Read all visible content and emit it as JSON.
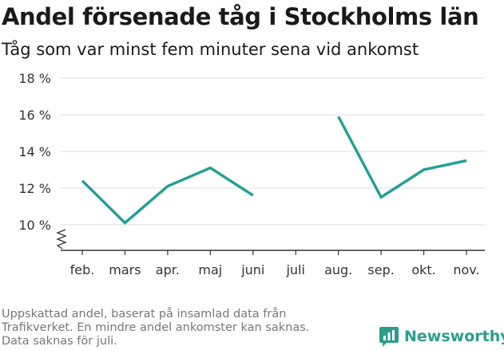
{
  "title": "Andel försenade tåg i Stockholms län",
  "subtitle": "Tåg som var minst fem minuter sena vid ankomst",
  "footer": [
    "Uppskattad andel, baserat på insamlad data från",
    "Trafikverket. En mindre andel ankomster kan saknas.",
    "Data saknas för juli."
  ],
  "logo": {
    "text": "Newsworthy",
    "icon": "newsworthy-chart-icon",
    "color": "#2b9e8b"
  },
  "colors": {
    "line": "#1fa092",
    "grid": "#dddddd",
    "axis": "#333333",
    "text": "#333333"
  },
  "chart_data": {
    "type": "line",
    "categories": [
      "feb.",
      "mars",
      "apr.",
      "maj",
      "juni",
      "juli",
      "aug.",
      "sep.",
      "okt.",
      "nov."
    ],
    "series": [
      {
        "values": [
          12.4,
          10.1,
          12.1,
          13.1,
          11.6,
          null,
          15.9,
          11.5,
          13.0,
          13.5
        ]
      }
    ],
    "yticks": [
      10,
      12,
      14,
      16,
      18
    ],
    "ytick_labels": [
      "10 %",
      "12 %",
      "14 %",
      "16 %",
      "18 %"
    ],
    "ylim": [
      8.6,
      18
    ],
    "axis_break": true,
    "grid": true,
    "xlabel": "",
    "ylabel": ""
  }
}
